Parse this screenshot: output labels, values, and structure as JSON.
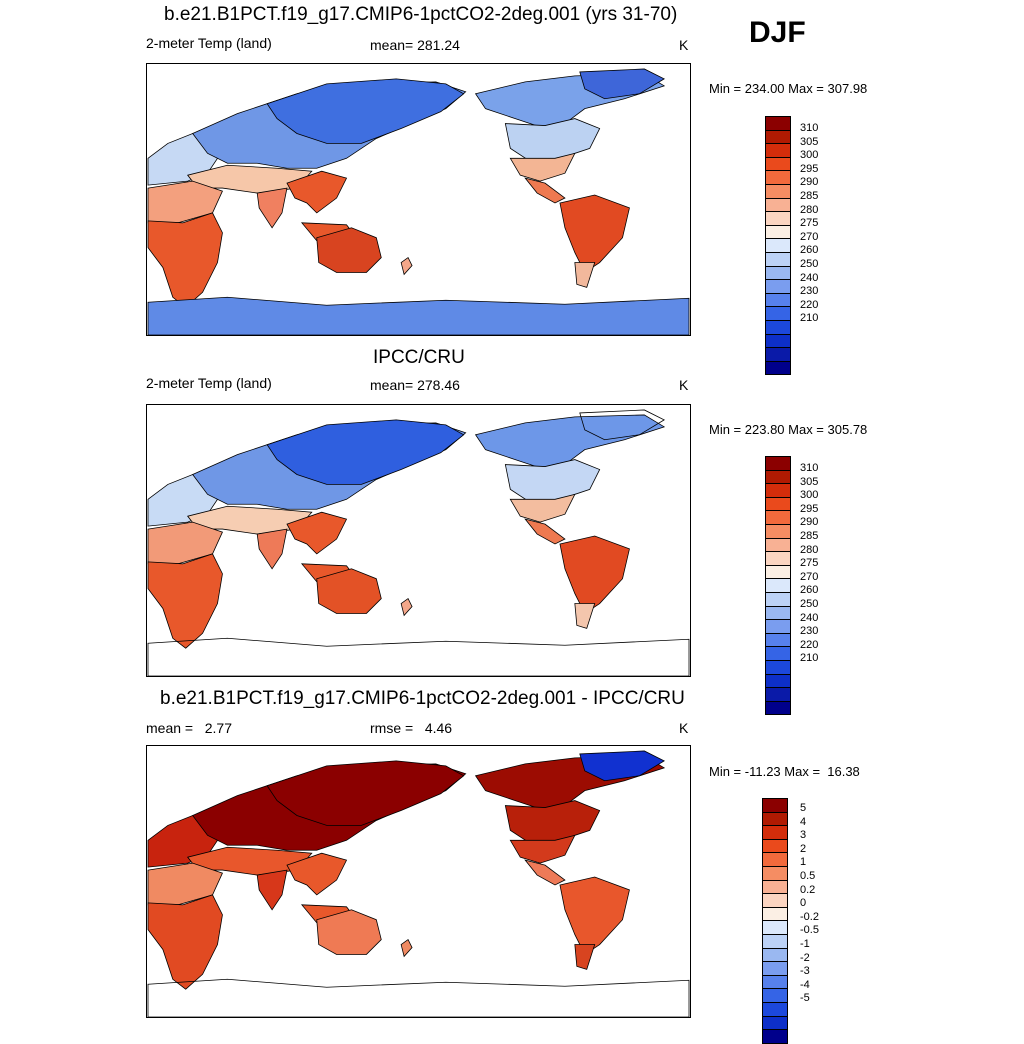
{
  "season": "DJF",
  "panels": [
    {
      "title": "b.e21.B1PCT.f19_g17.CMIP6-1pctCO2-2deg.001 (yrs 31-70)",
      "left_label": "2-meter Temp (land)",
      "center_label": "mean= 281.24",
      "units": "K",
      "minmax": "Min = 234.00 Max = 307.98",
      "colorbar": "abs",
      "fields": {
        "eurasia": "#6f97e6",
        "siberia": "#3f6fe0",
        "europe": "#c6d9f4",
        "mideast": "#f6c7a9",
        "africa": "#e8582b",
        "sahara": "#f3a07e",
        "india": "#f08060",
        "seasia": "#e8582b",
        "australia": "#d84420",
        "na_north": "#7aa2ea",
        "na_mid": "#bcd2f2",
        "na_south": "#f3b594",
        "central_am": "#ee7950",
        "south_am": "#e14a22",
        "patagonia": "#f2b89c",
        "antarctica": "#5f8ae6",
        "greenland": "#3e66d9",
        "nz": "#f4a78a"
      }
    },
    {
      "title": "IPCC/CRU",
      "left_label": "2-meter Temp (land)",
      "center_label": "mean= 278.46",
      "units": "K",
      "minmax": "Min = 223.80 Max = 305.78",
      "colorbar": "abs",
      "fields": {
        "eurasia": "#6f97e6",
        "siberia": "#2f5fdf",
        "europe": "#c8dbf5",
        "mideast": "#f6cdb2",
        "africa": "#e8582b",
        "sahara": "#f29a78",
        "india": "#ee7a58",
        "seasia": "#e8582b",
        "australia": "#e35226",
        "na_north": "#6d97e8",
        "na_mid": "#c4d7f4",
        "na_south": "#f3bd9f",
        "central_am": "#ee7950",
        "south_am": "#e14a22",
        "patagonia": "#f4c6ad",
        "antarctica": "none",
        "greenland": "none",
        "nz": "#f4a78a"
      }
    },
    {
      "title": "b.e21.B1PCT.f19_g17.CMIP6-1pctCO2-2deg.001 - IPCC/CRU",
      "left_label": "mean =   2.77",
      "center_label": "rmse =   4.46",
      "units": "K",
      "minmax": "Min = -11.23 Max =  16.38",
      "colorbar": "diff",
      "fields": {
        "eurasia": "#8b0000",
        "siberia": "#8b0000",
        "europe": "#c8230e",
        "mideast": "#e8572c",
        "africa": "#e14a22",
        "sahara": "#f08a62",
        "india": "#d7371a",
        "seasia": "#e8582b",
        "australia": "#ef7a54",
        "na_north": "#9c0c02",
        "na_mid": "#b8200a",
        "na_south": "#d33a1c",
        "central_am": "#ee7a58",
        "south_am": "#e8572c",
        "patagonia": "#d84420",
        "antarctica": "none",
        "greenland": "#1131d0",
        "nz": "#f08a62"
      }
    }
  ],
  "colorbars": {
    "abs": {
      "colors": [
        "#8b0000",
        "#b01a02",
        "#d32d0b",
        "#ea4a1c",
        "#f26a3c",
        "#f58d63",
        "#f8b194",
        "#fbd5c1",
        "#fbefe4",
        "#dbe8fb",
        "#bcd2f6",
        "#9ab8f1",
        "#7a9def",
        "#5781ec",
        "#3564e6",
        "#1c48dc",
        "#0d2fc9",
        "#0a1aa8",
        "#00008b"
      ],
      "labels": [
        "310",
        "305",
        "300",
        "295",
        "290",
        "285",
        "280",
        "275",
        "270",
        "260",
        "250",
        "240",
        "230",
        "220",
        "210"
      ]
    },
    "diff": {
      "colors": [
        "#8b0000",
        "#b01a02",
        "#d32d0b",
        "#ea4a1c",
        "#f26a3c",
        "#f58d63",
        "#f8b194",
        "#fbd5c1",
        "#fbefe4",
        "#dbe8fb",
        "#bcd2f6",
        "#9ab8f1",
        "#7a9def",
        "#5781ec",
        "#3564e6",
        "#1c48dc",
        "#0d2fc9",
        "#00008b"
      ],
      "labels": [
        "5",
        "4",
        "3",
        "2",
        "1",
        "0.5",
        "0.2",
        "0",
        "-0.2",
        "-0.5",
        "-1",
        "-2",
        "-3",
        "-4",
        "-5"
      ]
    }
  }
}
